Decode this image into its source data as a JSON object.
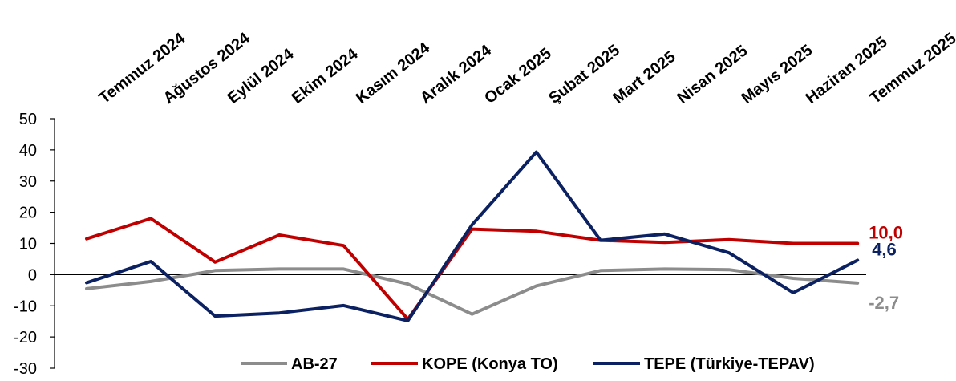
{
  "chart_data": {
    "type": "line",
    "categories": [
      "Temmuz 2024",
      "Ağustos 2024",
      "Eylül 2024",
      "Ekim 2024",
      "Kasım 2024",
      "Aralık 2024",
      "Ocak 2025",
      "Şubat 2025",
      "Mart 2025",
      "Nisan 2025",
      "Mayıs 2025",
      "Haziran 2025",
      "Temmuz 2025"
    ],
    "ylim": [
      -30,
      50
    ],
    "yticks": [
      "50",
      "40",
      "30",
      "20",
      "10",
      "0",
      "-10",
      "-20",
      "-30"
    ],
    "series": [
      {
        "name": "AB-27",
        "color": "#8c8c8c",
        "values": [
          -4.5,
          -2.2,
          1.3,
          1.8,
          1.8,
          -3.0,
          -12.7,
          -3.6,
          1.3,
          1.8,
          1.6,
          -1.2,
          -2.7
        ],
        "end_label": "-2,7"
      },
      {
        "name": "KOPE (Konya TO)",
        "color": "#c00000",
        "values": [
          11.5,
          18.0,
          4.0,
          12.7,
          9.3,
          -14.3,
          14.6,
          13.9,
          11.0,
          10.3,
          11.2,
          10.0,
          10.0
        ],
        "end_label": "10,0"
      },
      {
        "name": "TEPE (Türkiye-TEPAV)",
        "color": "#0b2161",
        "values": [
          -2.6,
          4.2,
          -13.3,
          -12.3,
          -9.9,
          -14.8,
          16.0,
          39.3,
          11.0,
          13.0,
          7.0,
          -5.8,
          4.6
        ],
        "end_label": "4,6"
      }
    ],
    "grid": false,
    "legend_position": "bottom"
  }
}
